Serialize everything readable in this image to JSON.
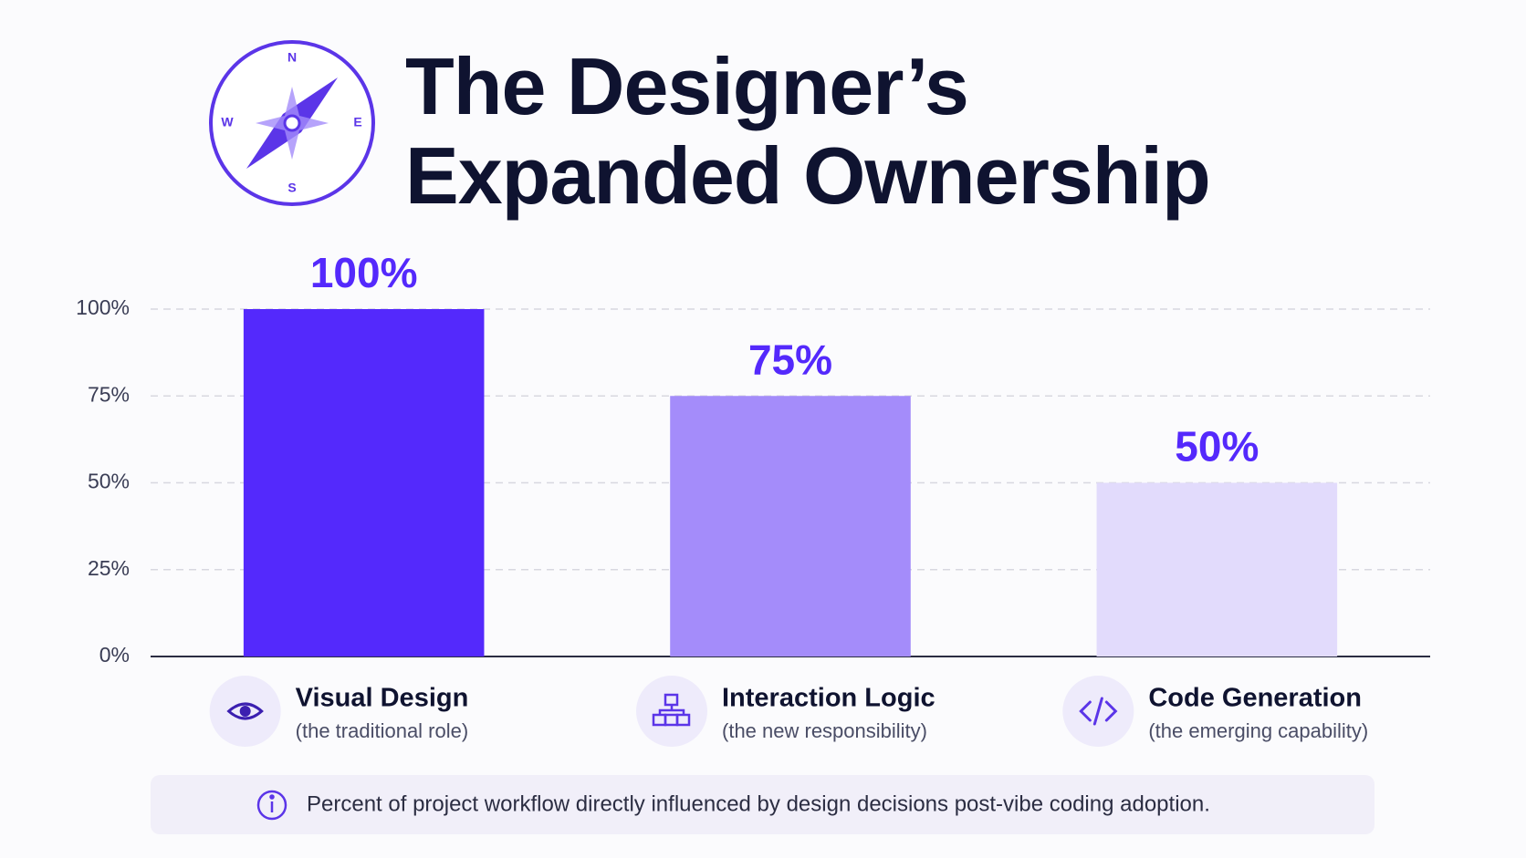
{
  "chart_data": {
    "type": "bar",
    "title": "The Designer’s Expanded Ownership",
    "compass_labels": [
      "N",
      "E",
      "S",
      "W"
    ],
    "categories": [
      "Visual Design",
      "Interaction Logic",
      "Code Generation"
    ],
    "category_notes": [
      "(the traditional role)",
      "(the new responsibility)",
      "(the emerging capability)"
    ],
    "values": [
      100,
      75,
      50
    ],
    "value_labels": [
      "100%",
      "75%",
      "50%"
    ],
    "colors": [
      "#5429fc",
      "#a48cfa",
      "#e2dbfc"
    ],
    "ylim": [
      0,
      100
    ],
    "yticks": [
      {
        "value": 0,
        "label": "0%"
      },
      {
        "value": 25,
        "label": "25%"
      },
      {
        "value": 50,
        "label": "50%"
      },
      {
        "value": 75,
        "label": "75%"
      },
      {
        "value": 100,
        "label": "100%"
      }
    ],
    "grid": true,
    "note": "Percent of project workflow directly influenced by design decisions post-vibe coding adoption."
  }
}
